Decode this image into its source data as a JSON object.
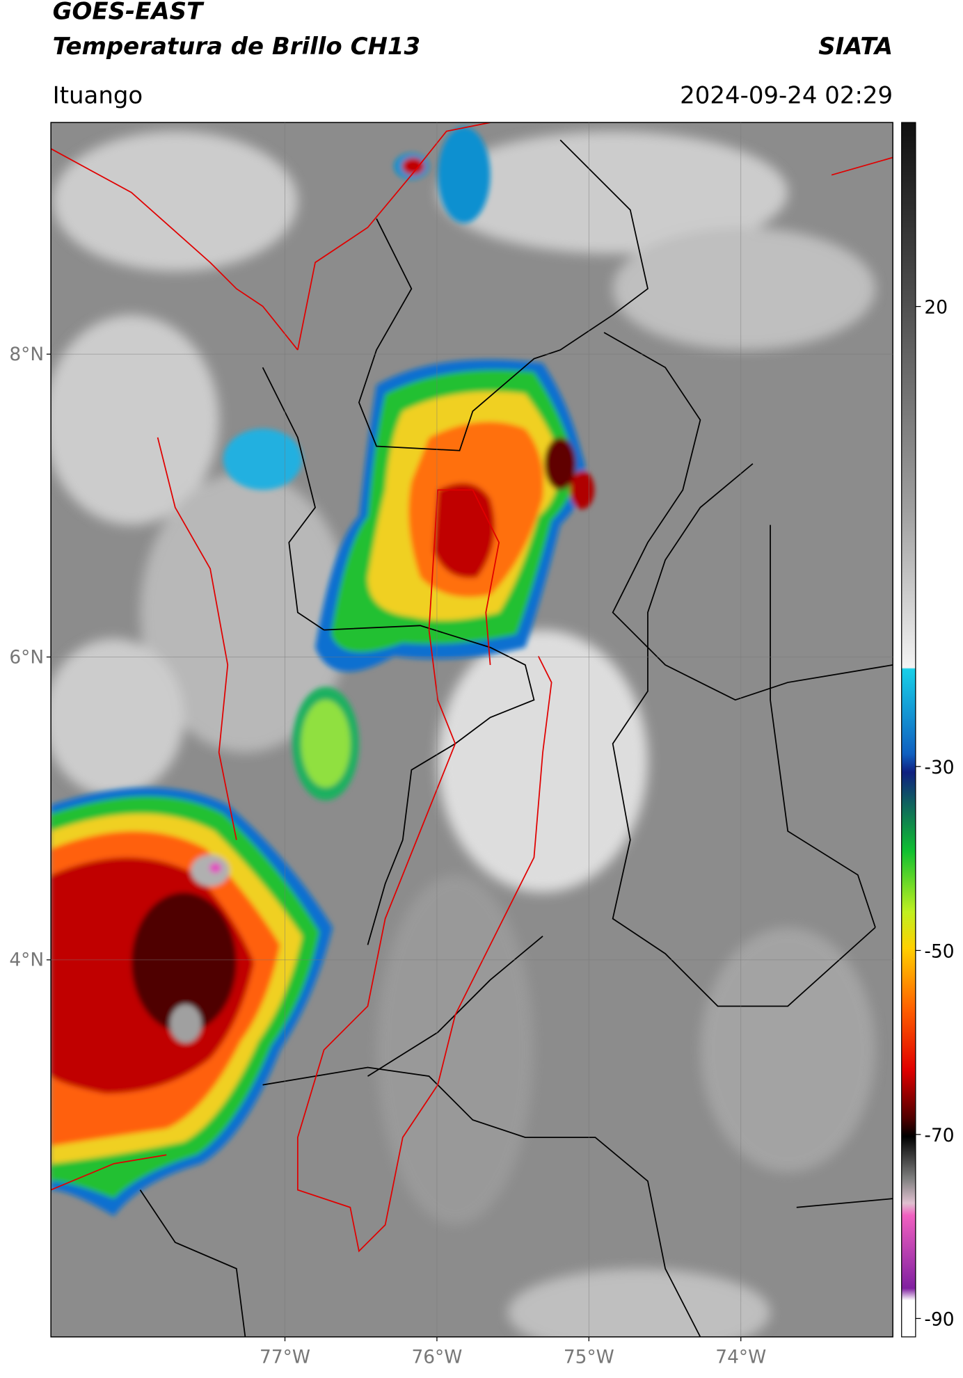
{
  "header": {
    "title_line1": "GOES-EAST",
    "title_line2": "Temperatura de Brillo CH13",
    "agency": "SIATA",
    "location": "Ituango",
    "datetime": "2024-09-24 02:29"
  },
  "map": {
    "lat_range": [
      1.51,
      9.53
    ],
    "lon_range": [
      -78.54,
      -73.0
    ],
    "lat_ticks": [
      {
        "value": 8,
        "label": "8°N"
      },
      {
        "value": 6,
        "label": "6°N"
      },
      {
        "value": 4,
        "label": "4°N"
      }
    ],
    "lon_ticks": [
      {
        "value": -77,
        "label": "77°W"
      },
      {
        "value": -76,
        "label": "76°W"
      },
      {
        "value": -75,
        "label": "75°W"
      },
      {
        "value": -74,
        "label": "74°W"
      }
    ]
  },
  "colorbar": {
    "range": [
      -92,
      40
    ],
    "ticks": [
      20,
      -30,
      -50,
      -70,
      -90
    ]
  }
}
